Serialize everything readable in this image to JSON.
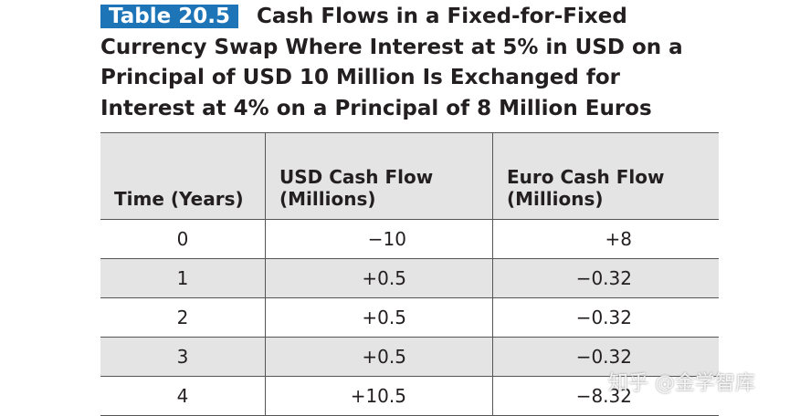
{
  "header": {
    "label": "Table 20.5",
    "title": "Cash Flows in a Fixed-for-Fixed Currency Swap Where Interest at 5% in USD on a Principal of USD 10 Million Is Exchanged for Interest at 4% on a Principal of 8 Million Euros"
  },
  "table": {
    "columns": [
      "Time (Years)",
      "USD Cash Flow (Millions)",
      "Euro Cash Flow (Millions)"
    ],
    "rows": [
      [
        "0",
        "−10",
        "+8"
      ],
      [
        "1",
        "+0.5",
        "−0.32"
      ],
      [
        "2",
        "+0.5",
        "−0.32"
      ],
      [
        "3",
        "+0.5",
        "−0.32"
      ],
      [
        "4",
        "+10.5",
        "−8.32"
      ]
    ]
  },
  "watermark": "知乎 @金学智库"
}
